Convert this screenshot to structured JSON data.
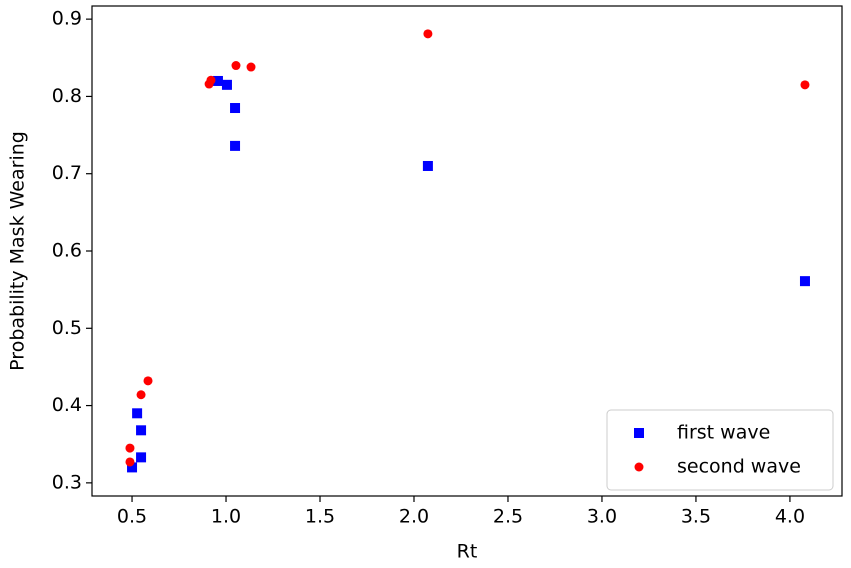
{
  "chart_data": {
    "type": "scatter",
    "xlabel": "Rt",
    "ylabel": "Probability Mask Wearing",
    "xlim": [
      0.287,
      4.277
    ],
    "ylim": [
      0.283,
      0.917
    ],
    "xticks": [
      0.5,
      {
        "value": 1,
        "label": "1.0"
      },
      1.5,
      {
        "value": 2,
        "label": "2.0"
      },
      2.5,
      {
        "value": 3,
        "label": "3.0"
      },
      3.5,
      {
        "value": 4,
        "label": "4.0"
      }
    ],
    "yticks": [
      0.3,
      0.4,
      0.5,
      0.6,
      0.7,
      0.8,
      0.9
    ],
    "legend": "lower right",
    "series": [
      {
        "name": "first wave",
        "color": "#0000ff",
        "marker": "square",
        "x": [
          0.5,
          0.527,
          0.548,
          0.548,
          0.957,
          1.005,
          1.048,
          1.048,
          2.074,
          4.08
        ],
        "values": [
          0.32,
          0.39,
          0.368,
          0.333,
          0.82,
          0.815,
          0.785,
          0.736,
          0.71,
          0.561
        ]
      },
      {
        "name": "second wave",
        "color": "#ff0000",
        "marker": "circle",
        "x": [
          0.489,
          0.489,
          0.548,
          0.585,
          0.91,
          0.92,
          1.053,
          1.133,
          2.074,
          4.08
        ],
        "values": [
          0.327,
          0.345,
          0.414,
          0.432,
          0.816,
          0.821,
          0.84,
          0.838,
          0.881,
          0.815
        ]
      }
    ]
  }
}
